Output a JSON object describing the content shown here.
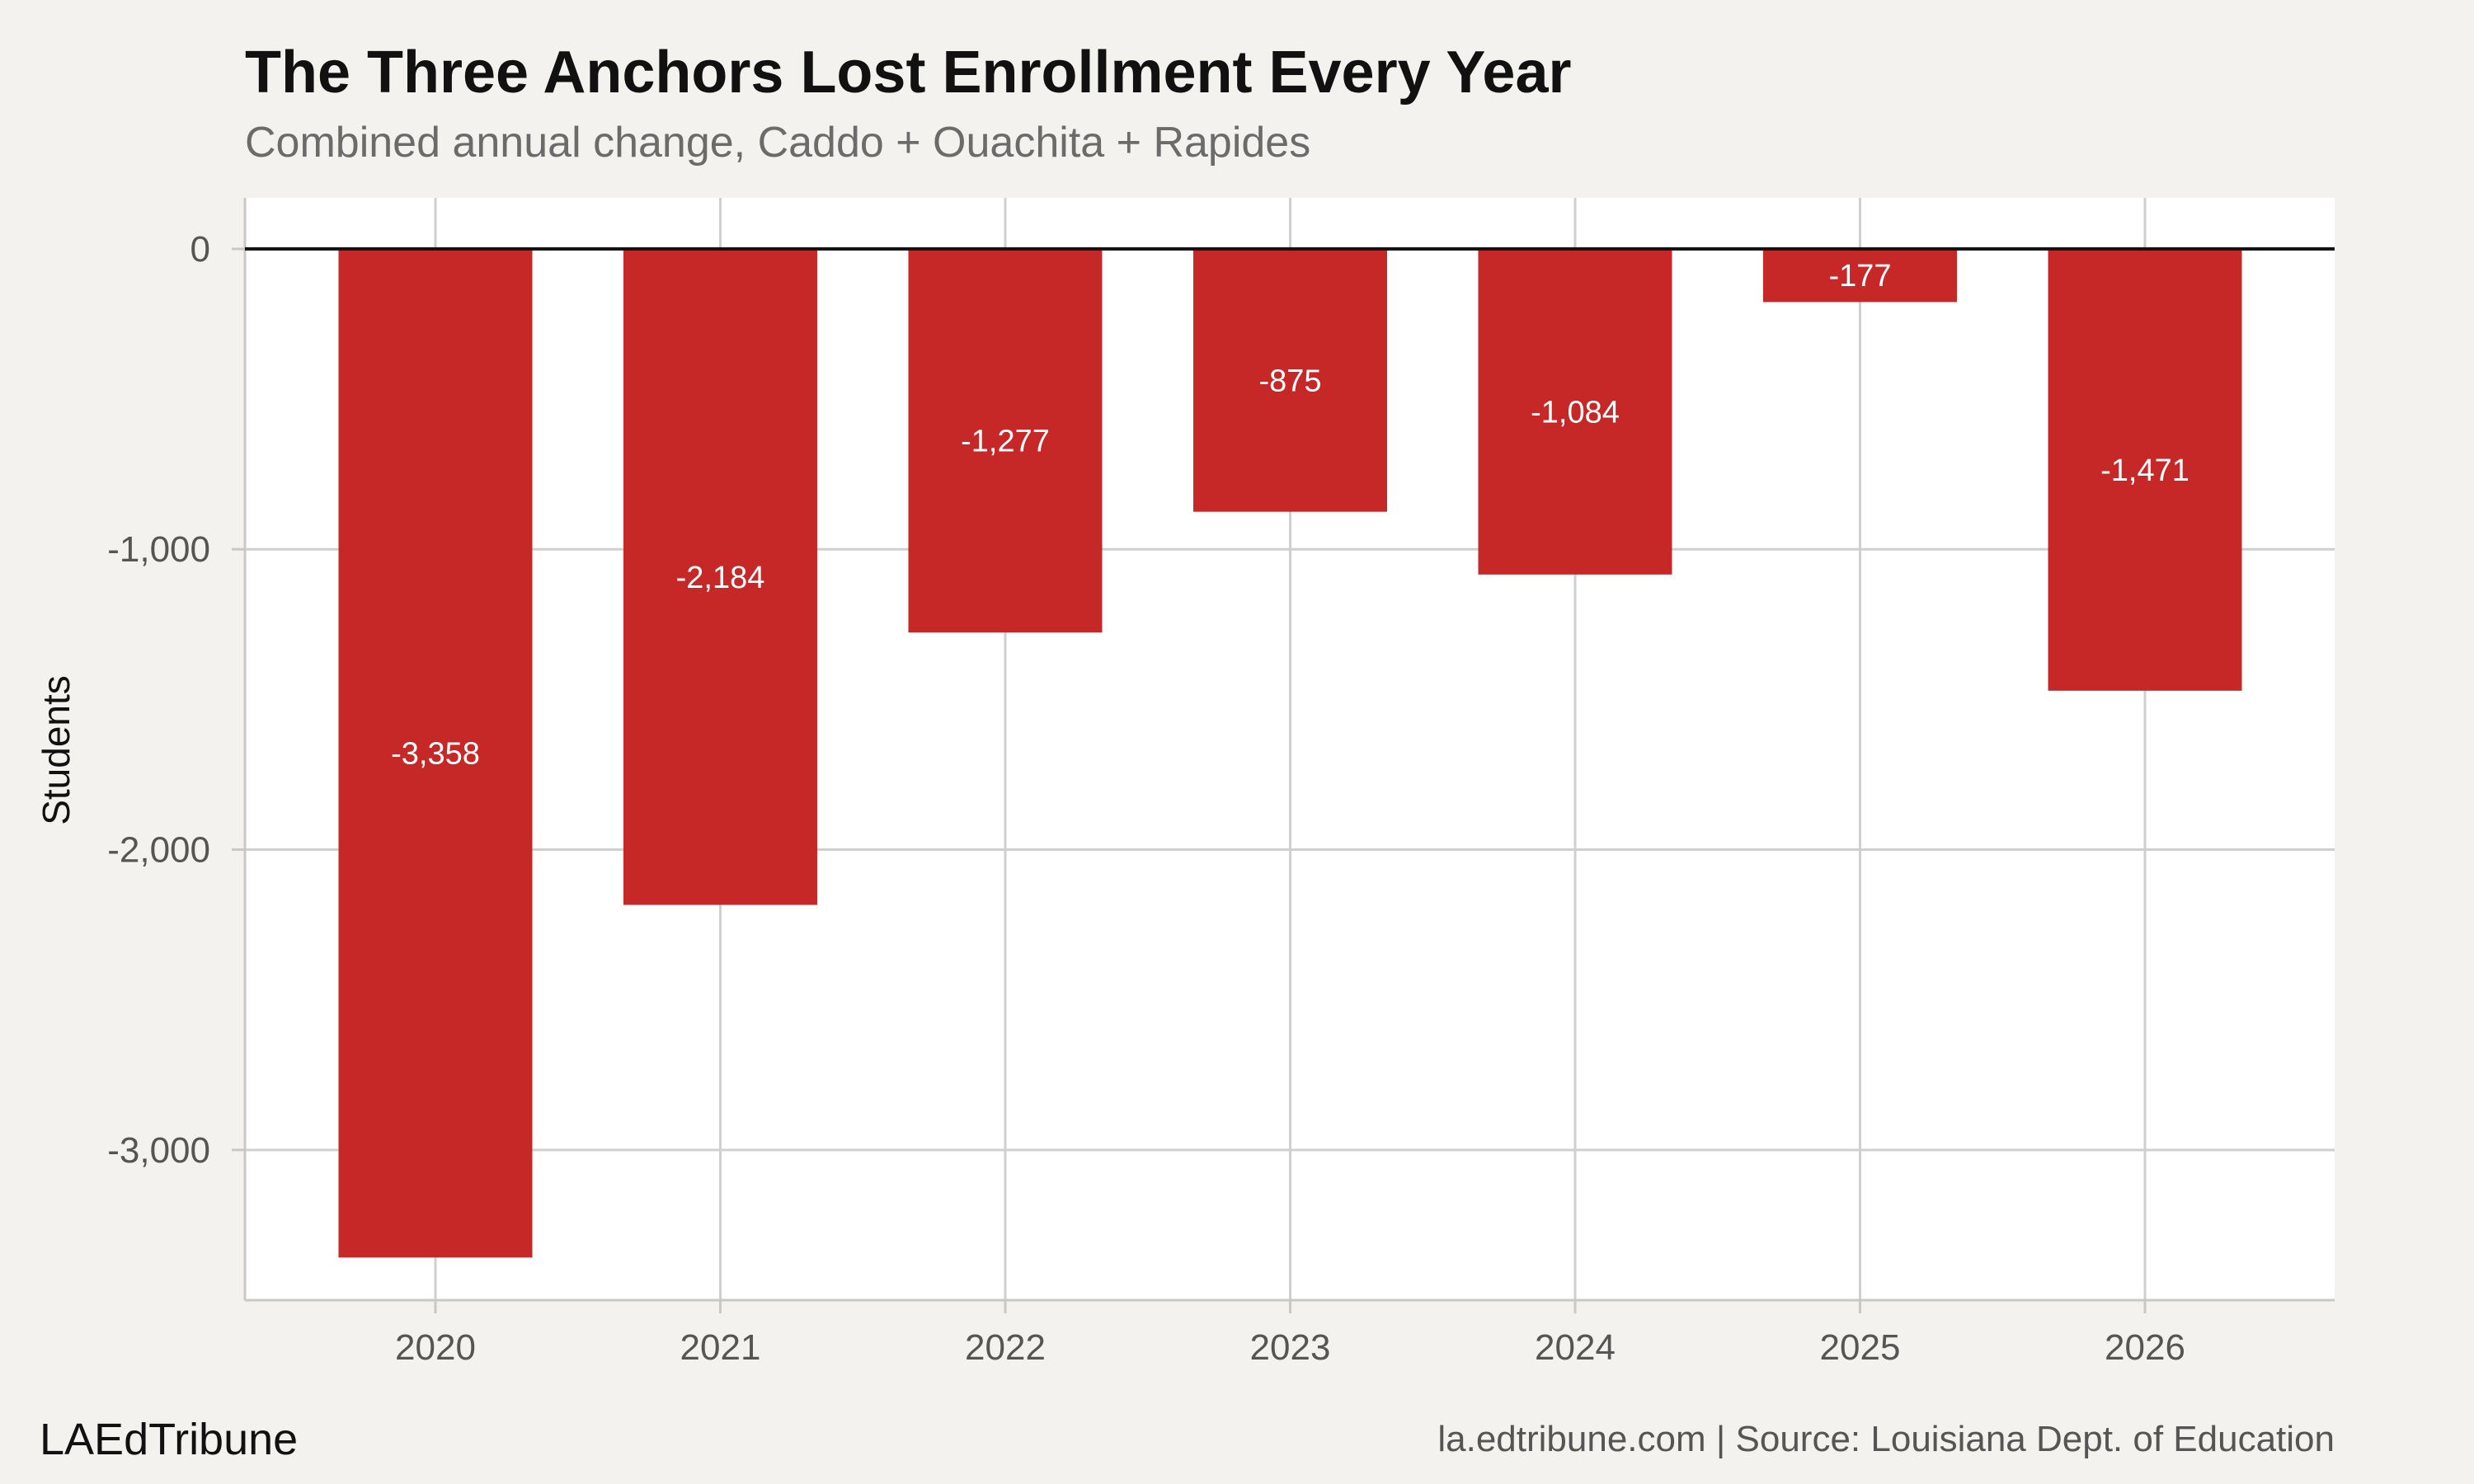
{
  "chart_data": {
    "type": "bar",
    "title": "The Three Anchors Lost Enrollment Every Year",
    "subtitle": "Combined annual change, Caddo + Ouachita + Rapides",
    "xlabel": "",
    "ylabel": "Students",
    "categories": [
      "2020",
      "2021",
      "2022",
      "2023",
      "2024",
      "2025",
      "2026"
    ],
    "values": [
      -3358,
      -2184,
      -1277,
      -875,
      -1084,
      -177,
      -1471
    ],
    "value_labels": [
      "-3,358",
      "-2,184",
      "-1,277",
      "-875",
      "-1,084",
      "-177",
      "-1,471"
    ],
    "ylim": [
      -3500,
      170
    ],
    "yticks": [
      0,
      -1000,
      -2000,
      -3000
    ],
    "ytick_labels": [
      "0",
      "-1,000",
      "-2,000",
      "-3,000"
    ],
    "grid": true,
    "legend": "none",
    "bar_color": "#c62828",
    "background_color": "#f4f2ee",
    "plot_background": "#ffffff",
    "brand": "LAEdTribune",
    "source": "la.edtribune.com | Source: Louisiana Dept. of Education"
  }
}
